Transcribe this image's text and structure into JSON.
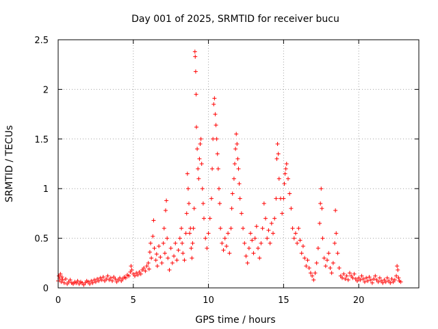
{
  "chart_data": {
    "type": "scatter",
    "title": "Day 001 of 2025, SRMTID for receiver bucu",
    "xlabel": "GPS time / hours",
    "ylabel": "SRMTID / TECUs",
    "xlim": [
      0,
      24
    ],
    "ylim": [
      0,
      2.5
    ],
    "x_ticks": [
      0,
      5,
      10,
      15,
      20
    ],
    "x_tick_labels": [
      "0",
      "5",
      "10",
      "15",
      "20"
    ],
    "y_ticks": [
      0,
      0.5,
      1,
      1.5,
      2,
      2.5
    ],
    "y_tick_labels": [
      "0",
      "0.5",
      "1",
      "1.5",
      "2",
      "2.5"
    ],
    "grid": true,
    "marker": "+",
    "series": [
      {
        "name": "SRMTID",
        "color": "#ff0000",
        "points": [
          [
            0.0,
            0.07
          ],
          [
            0.05,
            0.12
          ],
          [
            0.1,
            0.09
          ],
          [
            0.15,
            0.14
          ],
          [
            0.2,
            0.06
          ],
          [
            0.25,
            0.11
          ],
          [
            0.3,
            0.08
          ],
          [
            0.4,
            0.05
          ],
          [
            0.5,
            0.09
          ],
          [
            0.6,
            0.04
          ],
          [
            0.7,
            0.06
          ],
          [
            0.8,
            0.08
          ],
          [
            0.9,
            0.05
          ],
          [
            1.0,
            0.04
          ],
          [
            1.1,
            0.06
          ],
          [
            1.2,
            0.05
          ],
          [
            1.3,
            0.07
          ],
          [
            1.4,
            0.04
          ],
          [
            1.5,
            0.06
          ],
          [
            1.6,
            0.05
          ],
          [
            1.7,
            0.03
          ],
          [
            1.8,
            0.05
          ],
          [
            1.9,
            0.07
          ],
          [
            2.0,
            0.06
          ],
          [
            2.1,
            0.04
          ],
          [
            2.2,
            0.07
          ],
          [
            2.3,
            0.05
          ],
          [
            2.4,
            0.08
          ],
          [
            2.5,
            0.06
          ],
          [
            2.6,
            0.09
          ],
          [
            2.7,
            0.07
          ],
          [
            2.8,
            0.1
          ],
          [
            2.9,
            0.08
          ],
          [
            3.0,
            0.11
          ],
          [
            3.1,
            0.07
          ],
          [
            3.2,
            0.09
          ],
          [
            3.3,
            0.12
          ],
          [
            3.4,
            0.08
          ],
          [
            3.5,
            0.1
          ],
          [
            3.6,
            0.07
          ],
          [
            3.7,
            0.11
          ],
          [
            3.8,
            0.09
          ],
          [
            3.9,
            0.06
          ],
          [
            4.0,
            0.08
          ],
          [
            4.1,
            0.1
          ],
          [
            4.2,
            0.07
          ],
          [
            4.3,
            0.09
          ],
          [
            4.4,
            0.11
          ],
          [
            4.5,
            0.1
          ],
          [
            4.6,
            0.13
          ],
          [
            4.7,
            0.12
          ],
          [
            4.8,
            0.16
          ],
          [
            4.85,
            0.22
          ],
          [
            4.9,
            0.18
          ],
          [
            5.0,
            0.14
          ],
          [
            5.1,
            0.12
          ],
          [
            5.2,
            0.15
          ],
          [
            5.3,
            0.13
          ],
          [
            5.4,
            0.16
          ],
          [
            5.5,
            0.14
          ],
          [
            5.6,
            0.18
          ],
          [
            5.7,
            0.2
          ],
          [
            5.8,
            0.17
          ],
          [
            5.9,
            0.22
          ],
          [
            6.0,
            0.25
          ],
          [
            6.05,
            0.19
          ],
          [
            6.1,
            0.36
          ],
          [
            6.15,
            0.45
          ],
          [
            6.2,
            0.3
          ],
          [
            6.3,
            0.52
          ],
          [
            6.35,
            0.68
          ],
          [
            6.4,
            0.4
          ],
          [
            6.5,
            0.28
          ],
          [
            6.55,
            0.34
          ],
          [
            6.6,
            0.22
          ],
          [
            6.7,
            0.42
          ],
          [
            6.8,
            0.31
          ],
          [
            6.9,
            0.25
          ],
          [
            7.0,
            0.45
          ],
          [
            7.05,
            0.6
          ],
          [
            7.1,
            0.35
          ],
          [
            7.15,
            0.78
          ],
          [
            7.2,
            0.88
          ],
          [
            7.25,
            0.5
          ],
          [
            7.3,
            0.3
          ],
          [
            7.4,
            0.18
          ],
          [
            7.5,
            0.4
          ],
          [
            7.6,
            0.25
          ],
          [
            7.7,
            0.32
          ],
          [
            7.8,
            0.45
          ],
          [
            7.9,
            0.28
          ],
          [
            8.0,
            0.38
          ],
          [
            8.1,
            0.5
          ],
          [
            8.2,
            0.6
          ],
          [
            8.25,
            0.45
          ],
          [
            8.3,
            0.35
          ],
          [
            8.4,
            0.28
          ],
          [
            8.5,
            0.55
          ],
          [
            8.55,
            0.75
          ],
          [
            8.6,
            1.15
          ],
          [
            8.65,
            1.0
          ],
          [
            8.7,
            0.85
          ],
          [
            8.75,
            0.55
          ],
          [
            8.8,
            0.6
          ],
          [
            8.85,
            0.4
          ],
          [
            8.9,
            0.3
          ],
          [
            8.95,
            0.45
          ],
          [
            9.0,
            0.6
          ],
          [
            9.05,
            0.8
          ],
          [
            9.1,
            2.38
          ],
          [
            9.12,
            2.33
          ],
          [
            9.15,
            2.18
          ],
          [
            9.18,
            1.95
          ],
          [
            9.2,
            1.62
          ],
          [
            9.25,
            1.4
          ],
          [
            9.3,
            1.2
          ],
          [
            9.35,
            1.1
          ],
          [
            9.4,
            1.3
          ],
          [
            9.45,
            1.45
          ],
          [
            9.5,
            1.5
          ],
          [
            9.55,
            1.25
          ],
          [
            9.6,
            1.0
          ],
          [
            9.65,
            0.85
          ],
          [
            9.7,
            0.7
          ],
          [
            9.8,
            0.5
          ],
          [
            9.9,
            0.4
          ],
          [
            10.0,
            0.55
          ],
          [
            10.1,
            0.7
          ],
          [
            10.2,
            0.9
          ],
          [
            10.25,
            1.2
          ],
          [
            10.3,
            1.5
          ],
          [
            10.35,
            1.85
          ],
          [
            10.4,
            1.91
          ],
          [
            10.45,
            1.75
          ],
          [
            10.5,
            1.64
          ],
          [
            10.55,
            1.5
          ],
          [
            10.6,
            1.35
          ],
          [
            10.65,
            1.2
          ],
          [
            10.7,
            1.0
          ],
          [
            10.75,
            0.85
          ],
          [
            10.8,
            0.6
          ],
          [
            10.9,
            0.45
          ],
          [
            11.0,
            0.38
          ],
          [
            11.1,
            0.5
          ],
          [
            11.2,
            0.42
          ],
          [
            11.3,
            0.55
          ],
          [
            11.4,
            0.35
          ],
          [
            11.5,
            0.6
          ],
          [
            11.55,
            0.8
          ],
          [
            11.6,
            0.95
          ],
          [
            11.7,
            1.1
          ],
          [
            11.75,
            1.25
          ],
          [
            11.8,
            1.4
          ],
          [
            11.85,
            1.55
          ],
          [
            11.9,
            1.45
          ],
          [
            11.95,
            1.3
          ],
          [
            12.0,
            1.2
          ],
          [
            12.05,
            1.05
          ],
          [
            12.1,
            0.9
          ],
          [
            12.2,
            0.75
          ],
          [
            12.3,
            0.6
          ],
          [
            12.4,
            0.45
          ],
          [
            12.5,
            0.32
          ],
          [
            12.6,
            0.25
          ],
          [
            12.7,
            0.4
          ],
          [
            12.8,
            0.55
          ],
          [
            12.9,
            0.48
          ],
          [
            13.0,
            0.35
          ],
          [
            13.1,
            0.5
          ],
          [
            13.2,
            0.62
          ],
          [
            13.3,
            0.4
          ],
          [
            13.4,
            0.3
          ],
          [
            13.5,
            0.45
          ],
          [
            13.6,
            0.6
          ],
          [
            13.7,
            0.85
          ],
          [
            13.8,
            0.7
          ],
          [
            13.9,
            0.5
          ],
          [
            14.0,
            0.58
          ],
          [
            14.1,
            0.45
          ],
          [
            14.2,
            0.65
          ],
          [
            14.3,
            0.55
          ],
          [
            14.4,
            0.7
          ],
          [
            14.5,
            0.9
          ],
          [
            14.55,
            1.3
          ],
          [
            14.6,
            1.45
          ],
          [
            14.65,
            1.35
          ],
          [
            14.7,
            1.1
          ],
          [
            14.8,
            0.9
          ],
          [
            14.9,
            0.75
          ],
          [
            15.0,
            0.9
          ],
          [
            15.05,
            1.05
          ],
          [
            15.1,
            1.15
          ],
          [
            15.15,
            1.2
          ],
          [
            15.2,
            1.25
          ],
          [
            15.3,
            1.1
          ],
          [
            15.4,
            0.95
          ],
          [
            15.5,
            0.8
          ],
          [
            15.6,
            0.6
          ],
          [
            15.7,
            0.5
          ],
          [
            15.8,
            0.55
          ],
          [
            15.9,
            0.45
          ],
          [
            16.0,
            0.6
          ],
          [
            16.1,
            0.48
          ],
          [
            16.2,
            0.35
          ],
          [
            16.3,
            0.42
          ],
          [
            16.4,
            0.3
          ],
          [
            16.5,
            0.22
          ],
          [
            16.6,
            0.28
          ],
          [
            16.7,
            0.2
          ],
          [
            16.8,
            0.15
          ],
          [
            16.9,
            0.12
          ],
          [
            17.0,
            0.08
          ],
          [
            17.1,
            0.15
          ],
          [
            17.2,
            0.25
          ],
          [
            17.3,
            0.4
          ],
          [
            17.4,
            0.65
          ],
          [
            17.45,
            0.85
          ],
          [
            17.5,
            1.0
          ],
          [
            17.55,
            0.8
          ],
          [
            17.6,
            0.5
          ],
          [
            17.7,
            0.3
          ],
          [
            17.8,
            0.22
          ],
          [
            17.9,
            0.28
          ],
          [
            18.0,
            0.35
          ],
          [
            18.1,
            0.2
          ],
          [
            18.2,
            0.15
          ],
          [
            18.3,
            0.25
          ],
          [
            18.4,
            0.45
          ],
          [
            18.45,
            0.78
          ],
          [
            18.5,
            0.55
          ],
          [
            18.6,
            0.35
          ],
          [
            18.7,
            0.2
          ],
          [
            18.8,
            0.12
          ],
          [
            18.9,
            0.1
          ],
          [
            19.0,
            0.14
          ],
          [
            19.1,
            0.09
          ],
          [
            19.2,
            0.12
          ],
          [
            19.3,
            0.08
          ],
          [
            19.4,
            0.15
          ],
          [
            19.5,
            0.12
          ],
          [
            19.6,
            0.1
          ],
          [
            19.7,
            0.14
          ],
          [
            19.8,
            0.09
          ],
          [
            19.9,
            0.07
          ],
          [
            20.0,
            0.1
          ],
          [
            20.1,
            0.08
          ],
          [
            20.2,
            0.12
          ],
          [
            20.3,
            0.09
          ],
          [
            20.4,
            0.06
          ],
          [
            20.5,
            0.1
          ],
          [
            20.6,
            0.07
          ],
          [
            20.7,
            0.11
          ],
          [
            20.8,
            0.08
          ],
          [
            20.9,
            0.05
          ],
          [
            21.0,
            0.09
          ],
          [
            21.1,
            0.12
          ],
          [
            21.2,
            0.08
          ],
          [
            21.3,
            0.06
          ],
          [
            21.4,
            0.1
          ],
          [
            21.5,
            0.07
          ],
          [
            21.6,
            0.05
          ],
          [
            21.7,
            0.08
          ],
          [
            21.8,
            0.06
          ],
          [
            21.9,
            0.1
          ],
          [
            22.0,
            0.07
          ],
          [
            22.1,
            0.05
          ],
          [
            22.2,
            0.09
          ],
          [
            22.3,
            0.06
          ],
          [
            22.4,
            0.08
          ],
          [
            22.5,
            0.12
          ],
          [
            22.55,
            0.22
          ],
          [
            22.6,
            0.18
          ],
          [
            22.65,
            0.1
          ],
          [
            22.7,
            0.07
          ],
          [
            22.8,
            0.06
          ]
        ]
      }
    ]
  }
}
